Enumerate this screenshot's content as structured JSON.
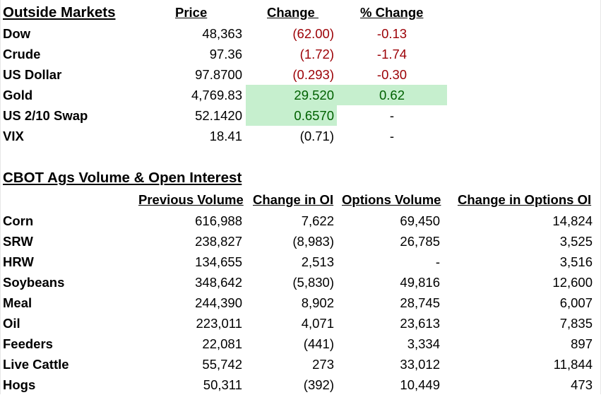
{
  "outside_markets": {
    "title": "Outside Markets",
    "headers": {
      "price": "Price",
      "change": "Change ",
      "pct_change": "% Change"
    },
    "rows": [
      {
        "name": "Dow",
        "price": "48,363",
        "change": "(62.00)",
        "pct": "-0.13",
        "change_color": "#9c0006",
        "pct_color": "#9c0006"
      },
      {
        "name": "Crude",
        "price": "97.36",
        "change": "(1.72)",
        "pct": "-1.74",
        "change_color": "#9c0006",
        "pct_color": "#9c0006"
      },
      {
        "name": "US Dollar",
        "price": "97.8700",
        "change": "(0.293)",
        "pct": "-0.30",
        "change_color": "#9c0006",
        "pct_color": "#9c0006"
      },
      {
        "name": "Gold",
        "price": "4,769.83",
        "change": "29.520",
        "pct": "0.62",
        "change_color": "#006100",
        "pct_color": "#006100",
        "change_fill": "#c6efce",
        "pct_fill": "#c6efce"
      },
      {
        "name": "US 2/10 Swap",
        "price": "52.1420",
        "change": "0.6570",
        "pct": "-",
        "change_color": "#006100",
        "pct_color": "#000000",
        "change_fill": "#c6efce"
      },
      {
        "name": "VIX",
        "price": "18.41",
        "change": "(0.71)",
        "pct": "-",
        "change_color": "#000000",
        "pct_color": "#000000"
      }
    ]
  },
  "cbot": {
    "title": "CBOT Ags Volume & Open Interest",
    "headers": {
      "prev_volume": "Previous Volume",
      "change_oi": "Change in OI",
      "options_volume": "Options Volume",
      "change_options_oi": "Change in Options OI"
    },
    "rows": [
      {
        "name": "Corn",
        "prev_volume": "616,988",
        "change_oi": "7,622",
        "options_volume": "69,450",
        "change_options_oi": "14,824"
      },
      {
        "name": "SRW",
        "prev_volume": "238,827",
        "change_oi": "(8,983)",
        "options_volume": "26,785",
        "change_options_oi": "3,525"
      },
      {
        "name": "HRW",
        "prev_volume": "134,655",
        "change_oi": "2,513",
        "options_volume": "-",
        "change_options_oi": "3,516"
      },
      {
        "name": "Soybeans",
        "prev_volume": "348,642",
        "change_oi": "(5,830)",
        "options_volume": "49,816",
        "change_options_oi": "12,600"
      },
      {
        "name": "Meal",
        "prev_volume": "244,390",
        "change_oi": "8,902",
        "options_volume": "28,745",
        "change_options_oi": "6,007"
      },
      {
        "name": "Oil",
        "prev_volume": "223,011",
        "change_oi": "4,071",
        "options_volume": "23,613",
        "change_options_oi": "7,835"
      },
      {
        "name": "Feeders",
        "prev_volume": "22,081",
        "change_oi": "(441)",
        "options_volume": "3,334",
        "change_options_oi": "897"
      },
      {
        "name": "Live Cattle",
        "prev_volume": "55,742",
        "change_oi": "273",
        "options_volume": "33,012",
        "change_options_oi": "11,844"
      },
      {
        "name": "Hogs",
        "prev_volume": "50,311",
        "change_oi": "(392)",
        "options_volume": "10,449",
        "change_options_oi": "473"
      }
    ]
  }
}
